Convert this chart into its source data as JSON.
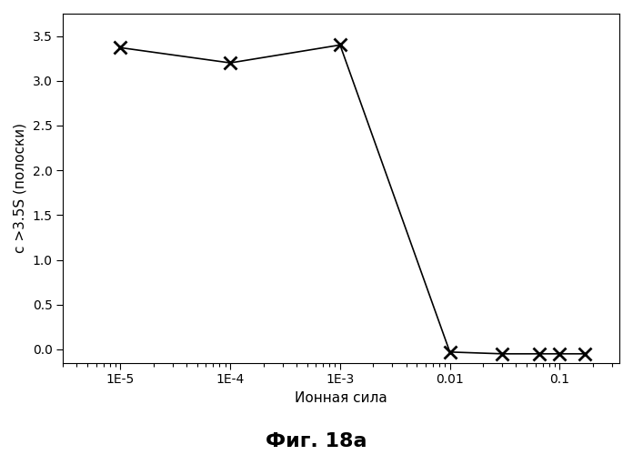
{
  "x_values": [
    1e-05,
    0.0001,
    0.001,
    0.01,
    0.03,
    0.065,
    0.1,
    0.17
  ],
  "y_values": [
    3.37,
    3.2,
    3.4,
    -0.03,
    -0.05,
    -0.05,
    -0.05,
    -0.05
  ],
  "xlabel": "Ионная сила",
  "ylabel": "с >3.5S (полоски)",
  "figure_label": "Фиг. 18а",
  "ylim": [
    -0.15,
    3.75
  ],
  "yticks": [
    0.0,
    0.5,
    1.0,
    1.5,
    2.0,
    2.5,
    3.0,
    3.5
  ],
  "xtick_labels": [
    "1E-5",
    "1E-4",
    "1E-3",
    "0.01",
    "0.1"
  ],
  "xtick_values": [
    1e-05,
    0.0001,
    0.001,
    0.01,
    0.1
  ],
  "xlim": [
    3e-06,
    0.35
  ],
  "marker": "x",
  "marker_size": 10,
  "marker_linewidth": 2.0,
  "line_color": "#000000",
  "line_width": 1.2,
  "background_color": "#ffffff",
  "figure_label_fontsize": 16,
  "label_fontsize": 11,
  "tick_fontsize": 10
}
